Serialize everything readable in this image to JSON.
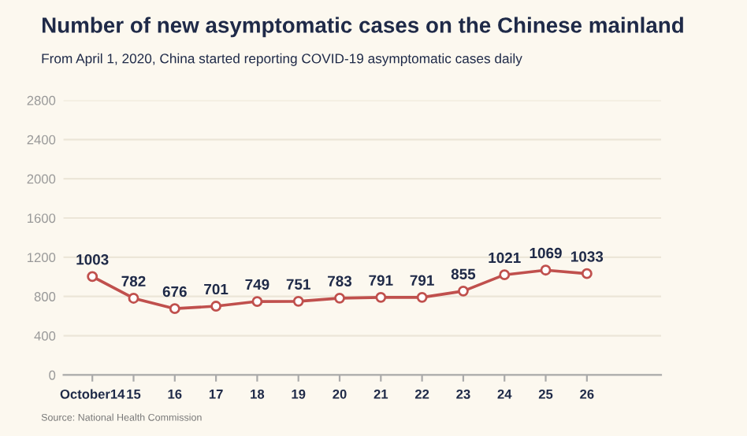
{
  "chart_data": {
    "type": "line",
    "title": "Number of new asymptomatic cases on the Chinese mainland",
    "subtitle": "From April 1, 2020, China started reporting COVID-19 asymptomatic cases daily",
    "categories": [
      "October14",
      "15",
      "16",
      "17",
      "18",
      "19",
      "20",
      "21",
      "22",
      "23",
      "24",
      "25",
      "26"
    ],
    "series": [
      {
        "color": "#c0504d",
        "values": [
          1003,
          782,
          676,
          701,
          749,
          751,
          783,
          791,
          791,
          855,
          1021,
          1069,
          1033
        ]
      }
    ],
    "ylim": [
      0,
      2800
    ],
    "yticks": [
      0,
      400,
      800,
      1200,
      1600,
      2000,
      2400,
      2800
    ],
    "grid": "y",
    "marker": "circle",
    "line_style": "solid",
    "data_labels": true,
    "annotations": [
      "Source: National Health Commission"
    ]
  }
}
